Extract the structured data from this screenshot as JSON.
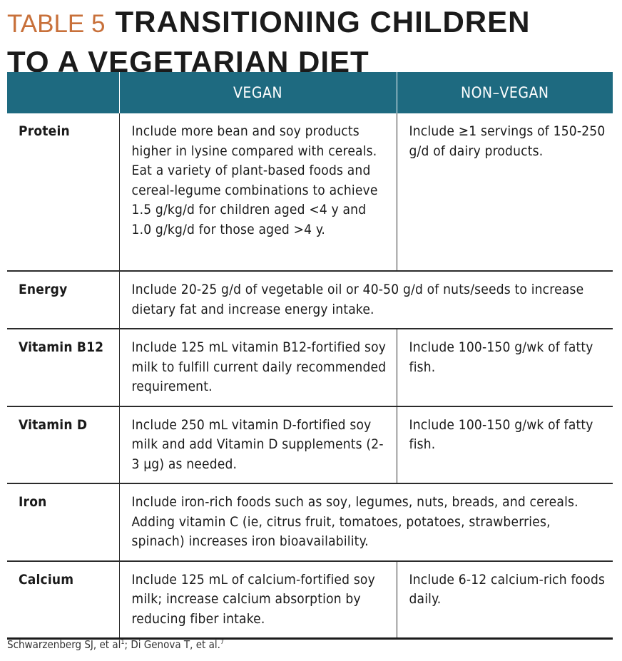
{
  "title": {
    "label": "TABLE 5",
    "line1": "TRANSITIONING CHILDREN",
    "line2": "TO A VEGETARIAN DIET"
  },
  "colors": {
    "header_bg": "#1e6a80",
    "label": "#c8703a"
  },
  "table": {
    "headers": [
      "",
      "VEGAN",
      "NON–VEGAN"
    ],
    "rows": [
      {
        "nutrient": "Protein",
        "vegan": "Include more bean and soy products higher in lysine compared with cereals. Eat a variety of plant-based foods and cereal-legume combinations to achieve 1.5 g/kg/d for children aged <4 y and 1.0 g/kg/d for those aged >4 y.",
        "non_vegan": "Include ≥1 servings of 150-250 g/d of dairy products."
      },
      {
        "nutrient": "Energy",
        "both": "Include 20-25 g/d of vegetable oil or 40-50 g/d of nuts/seeds to increase dietary fat and increase energy intake."
      },
      {
        "nutrient": "Vitamin B12",
        "vegan": "Include 125 mL vitamin B12-fortified soy milk to fulfill current daily recommended requirement.",
        "non_vegan": "Include 100-150 g/wk of fatty fish."
      },
      {
        "nutrient": "Vitamin D",
        "vegan": "Include 250 mL vitamin D-fortified soy milk and add Vitamin D supplements (2-3 µg) as needed.",
        "non_vegan": "Include 100-150 g/wk of fatty fish."
      },
      {
        "nutrient": "Iron",
        "both": "Include iron-rich foods such as soy, legumes, nuts, breads, and cereals. Adding vitamin C (ie, citrus fruit, tomatoes, potatoes, strawberries, spinach) increases iron bioavailability."
      },
      {
        "nutrient": "Calcium",
        "vegan": "Include 125 mL of calcium-fortified soy milk; increase calcium absorption by reducing fiber intake.",
        "non_vegan": "Include 6-12 calcium-rich foods daily."
      }
    ]
  },
  "footer": {
    "ref1": "Schwarzenberg SJ, et al",
    "ref1_sup": "1",
    "sep": "; Di Genova T, et al.",
    "ref2_sup": "7"
  }
}
